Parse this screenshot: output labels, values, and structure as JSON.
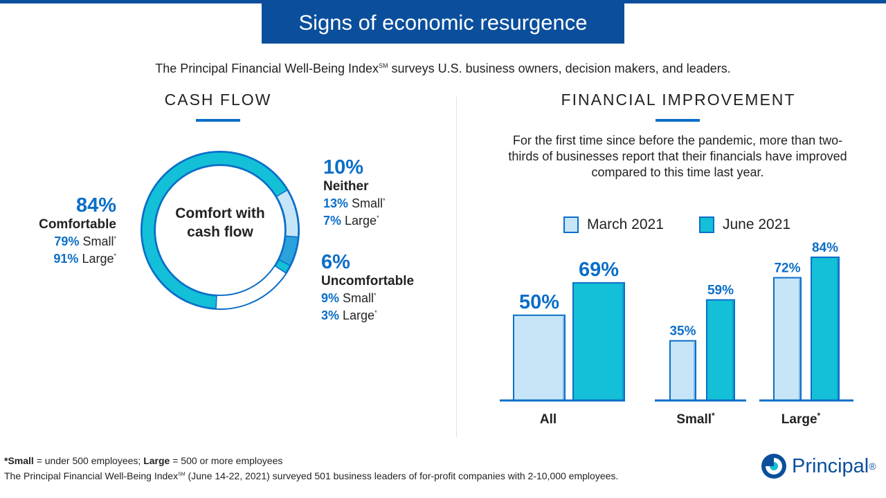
{
  "header": {
    "title": "Signs of economic resurgence",
    "subtitle_main": "The Principal Financial Well-Being Index",
    "subtitle_mark": "SM",
    "subtitle_rest": " surveys U.S. business owners, decision makers, and leaders."
  },
  "cash_flow": {
    "title": "CASH FLOW",
    "center_label": "Comfort with cash flow",
    "comfortable": {
      "pct": "84%",
      "label": "Comfortable",
      "small_pct": "79%",
      "small": "Small",
      "large_pct": "91%",
      "large": "Large",
      "star": "*"
    },
    "neither": {
      "pct": "10%",
      "label": "Neither",
      "small_pct": "13%",
      "small": "Small",
      "large_pct": "7%",
      "large": "Large",
      "star": "*"
    },
    "uncomfortable": {
      "pct": "6%",
      "label": "Uncomfortable",
      "small_pct": "9%",
      "small": "Small",
      "large_pct": "3%",
      "large": "Large",
      "star": "*"
    }
  },
  "financial_improvement": {
    "title": "FINANCIAL IMPROVEMENT",
    "description": "For the first time since before the pandemic, more than two-thirds of businesses report that their financials have improved compared to this time last year.",
    "legend": {
      "march": "March 2021",
      "june": "June 2021"
    }
  },
  "chart_data": [
    {
      "type": "pie",
      "title": "Comfort with cash flow",
      "categories": [
        "Comfortable",
        "Neither",
        "Uncomfortable"
      ],
      "values": [
        84,
        10,
        6
      ],
      "colors": [
        "#13c0d7",
        "#c6e6f8",
        "#2aa3dc"
      ]
    },
    {
      "type": "bar",
      "title": "FINANCIAL IMPROVEMENT",
      "categories": [
        "All",
        "Small",
        "Large"
      ],
      "category_marks": [
        "",
        "*",
        "*"
      ],
      "series": [
        {
          "name": "March 2021",
          "values": [
            50,
            35,
            72
          ],
          "labels": [
            "50%",
            "35%",
            "72%"
          ],
          "color": "#c6e6f8"
        },
        {
          "name": "June 2021",
          "values": [
            69,
            59,
            84
          ],
          "labels": [
            "69%",
            "59%",
            "84%"
          ],
          "color": "#13c0d7"
        }
      ],
      "ylim": [
        0,
        100
      ]
    }
  ],
  "footer": {
    "line1_bold_a": "*Small",
    "line1_a": " = under 500 employees; ",
    "line1_bold_b": "Large",
    "line1_b": " = 500 or more employees",
    "line2_a": "The Principal Financial Well-Being Index",
    "line2_mark": "SM",
    "line2_b": " (June 14-22, 2021) surveyed 501 business leaders of for-profit companies with 2-10,000 employees."
  },
  "logo": {
    "text": "Principal",
    "mark": "®"
  },
  "colors": {
    "navy": "#0b4f9c",
    "accent_blue": "#0b6ec8",
    "teal": "#13c0d7",
    "light_blue": "#c6e6f8",
    "mid_blue": "#2aa3dc"
  }
}
